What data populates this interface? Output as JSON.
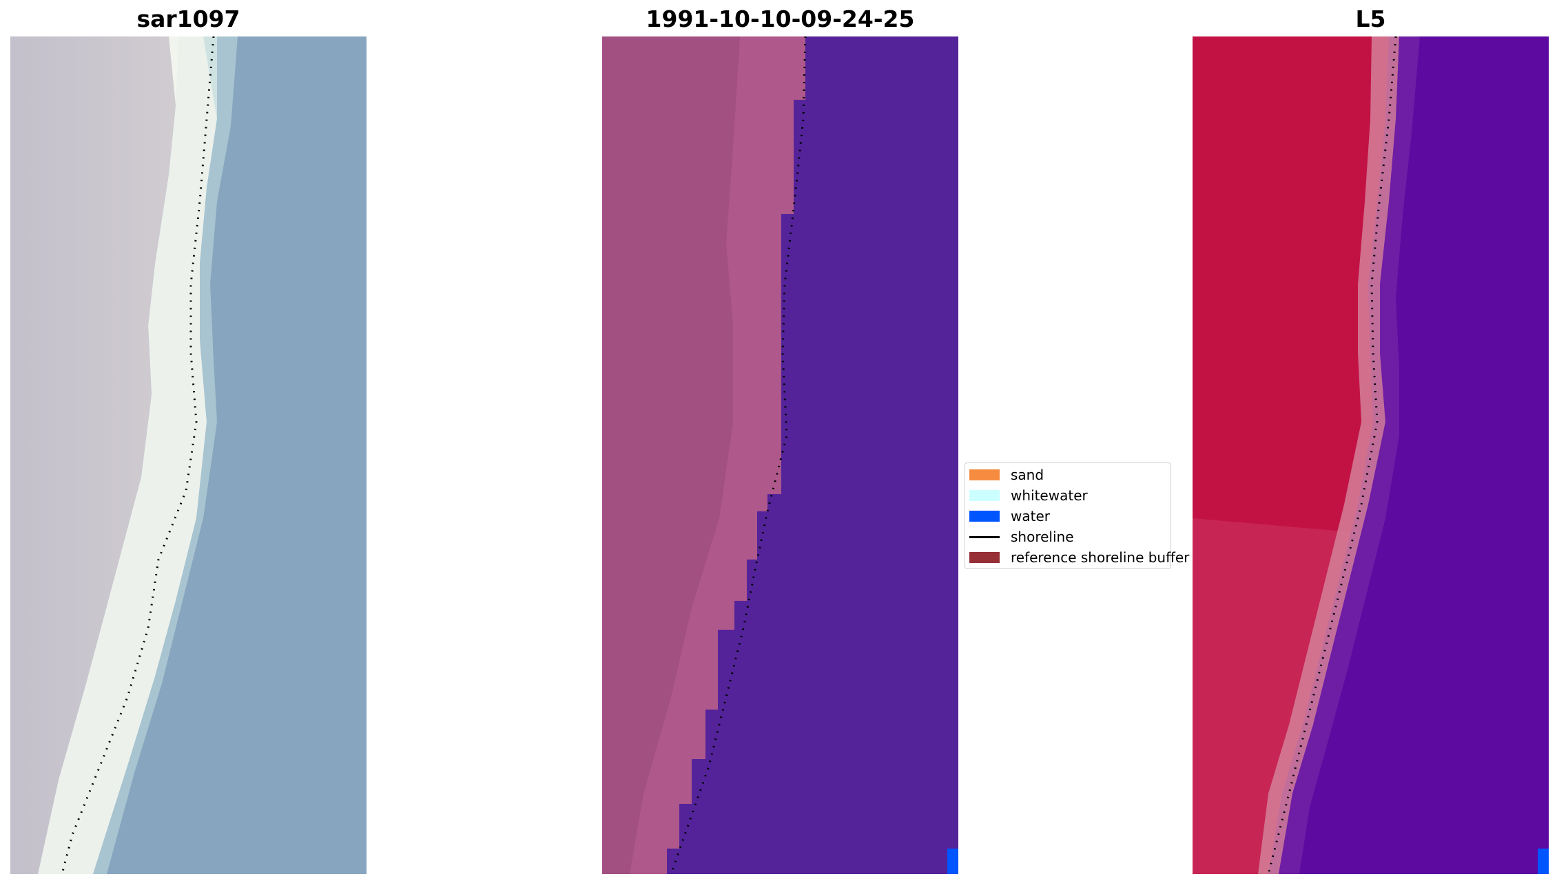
{
  "panels": [
    {
      "title": "sar1097"
    },
    {
      "title": "1991-10-10-09-24-25"
    },
    {
      "title": "L5"
    }
  ],
  "legend": {
    "items": [
      {
        "label": "sand",
        "color": "#f68c40",
        "kind": "patch"
      },
      {
        "label": "whitewater",
        "color": "#ccffff",
        "kind": "patch"
      },
      {
        "label": "water",
        "color": "#0055ff",
        "kind": "patch"
      },
      {
        "label": "shoreline",
        "color": "#000000",
        "kind": "line"
      },
      {
        "label": "reference shoreline buffer",
        "color": "#963036",
        "kind": "patch"
      }
    ]
  },
  "colors": {
    "rgb_land": "#c7c4cc",
    "rgb_whitewater": "#f4f7f0",
    "rgb_water": "#87a5be",
    "class_land": "#a24f82",
    "class_water": "#54239a",
    "index_land": "#c21244",
    "index_water": "#5c0aa0"
  }
}
